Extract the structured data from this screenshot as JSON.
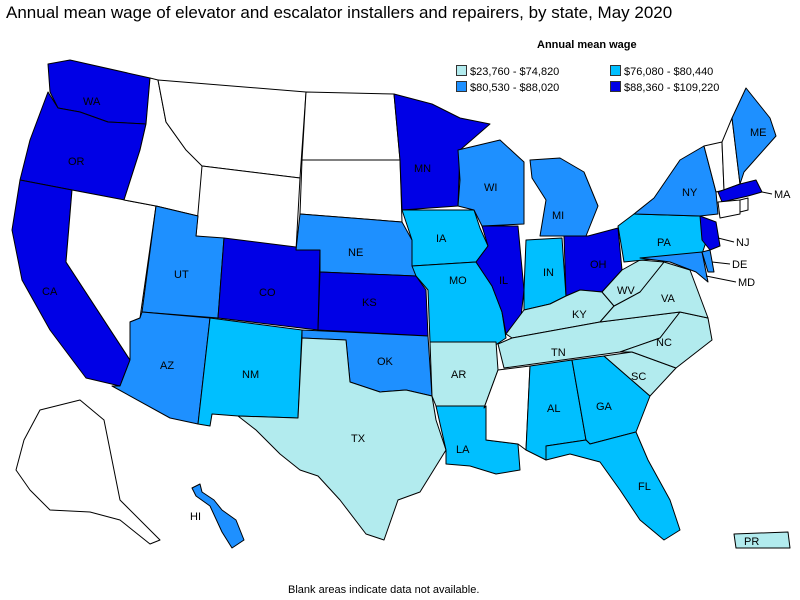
{
  "title": "Annual mean wage of elevator and escalator installers and repairers, by state, May 2020",
  "legend": {
    "title": "Annual mean wage",
    "items": [
      {
        "range": "$23,760 - $74,820",
        "color": "#b2ebee"
      },
      {
        "range": "$76,080 - $80,440",
        "color": "#00bfff"
      },
      {
        "range": "$80,530 - $88,020",
        "color": "#1e90ff"
      },
      {
        "range": "$88,360 - $109,220",
        "color": "#0000e6"
      }
    ]
  },
  "na_color": "#ffffff",
  "footnote": "Blank areas indicate data not available.",
  "states": [
    {
      "abbr": "WA",
      "bin": 3
    },
    {
      "abbr": "OR",
      "bin": 3
    },
    {
      "abbr": "CA",
      "bin": 3
    },
    {
      "abbr": "NV",
      "bin": null
    },
    {
      "abbr": "ID",
      "bin": null
    },
    {
      "abbr": "MT",
      "bin": null
    },
    {
      "abbr": "WY",
      "bin": null
    },
    {
      "abbr": "UT",
      "bin": 2
    },
    {
      "abbr": "CO",
      "bin": 3
    },
    {
      "abbr": "AZ",
      "bin": 2
    },
    {
      "abbr": "NM",
      "bin": 1
    },
    {
      "abbr": "ND",
      "bin": null
    },
    {
      "abbr": "SD",
      "bin": null
    },
    {
      "abbr": "NE",
      "bin": 2
    },
    {
      "abbr": "KS",
      "bin": 3
    },
    {
      "abbr": "OK",
      "bin": 2
    },
    {
      "abbr": "TX",
      "bin": 0
    },
    {
      "abbr": "MN",
      "bin": 3
    },
    {
      "abbr": "IA",
      "bin": 1
    },
    {
      "abbr": "MO",
      "bin": 1
    },
    {
      "abbr": "AR",
      "bin": 0
    },
    {
      "abbr": "LA",
      "bin": 1
    },
    {
      "abbr": "WI",
      "bin": 2
    },
    {
      "abbr": "IL",
      "bin": 3
    },
    {
      "abbr": "MI",
      "bin": 2
    },
    {
      "abbr": "IN",
      "bin": 1
    },
    {
      "abbr": "OH",
      "bin": 3
    },
    {
      "abbr": "KY",
      "bin": 0
    },
    {
      "abbr": "TN",
      "bin": 0
    },
    {
      "abbr": "MS",
      "bin": null
    },
    {
      "abbr": "AL",
      "bin": 1
    },
    {
      "abbr": "GA",
      "bin": 1
    },
    {
      "abbr": "FL",
      "bin": 1
    },
    {
      "abbr": "SC",
      "bin": 0
    },
    {
      "abbr": "NC",
      "bin": 0
    },
    {
      "abbr": "VA",
      "bin": 0
    },
    {
      "abbr": "WV",
      "bin": 0
    },
    {
      "abbr": "PA",
      "bin": 1
    },
    {
      "abbr": "NY",
      "bin": 2
    },
    {
      "abbr": "ME",
      "bin": 2
    },
    {
      "abbr": "VT",
      "bin": null
    },
    {
      "abbr": "NH",
      "bin": null
    },
    {
      "abbr": "MA",
      "bin": 3
    },
    {
      "abbr": "CT",
      "bin": null
    },
    {
      "abbr": "RI",
      "bin": null
    },
    {
      "abbr": "NJ",
      "bin": 3
    },
    {
      "abbr": "DE",
      "bin": 2
    },
    {
      "abbr": "MD",
      "bin": 2
    },
    {
      "abbr": "AK",
      "bin": null
    },
    {
      "abbr": "HI",
      "bin": 2
    },
    {
      "abbr": "PR",
      "bin": 0
    }
  ]
}
